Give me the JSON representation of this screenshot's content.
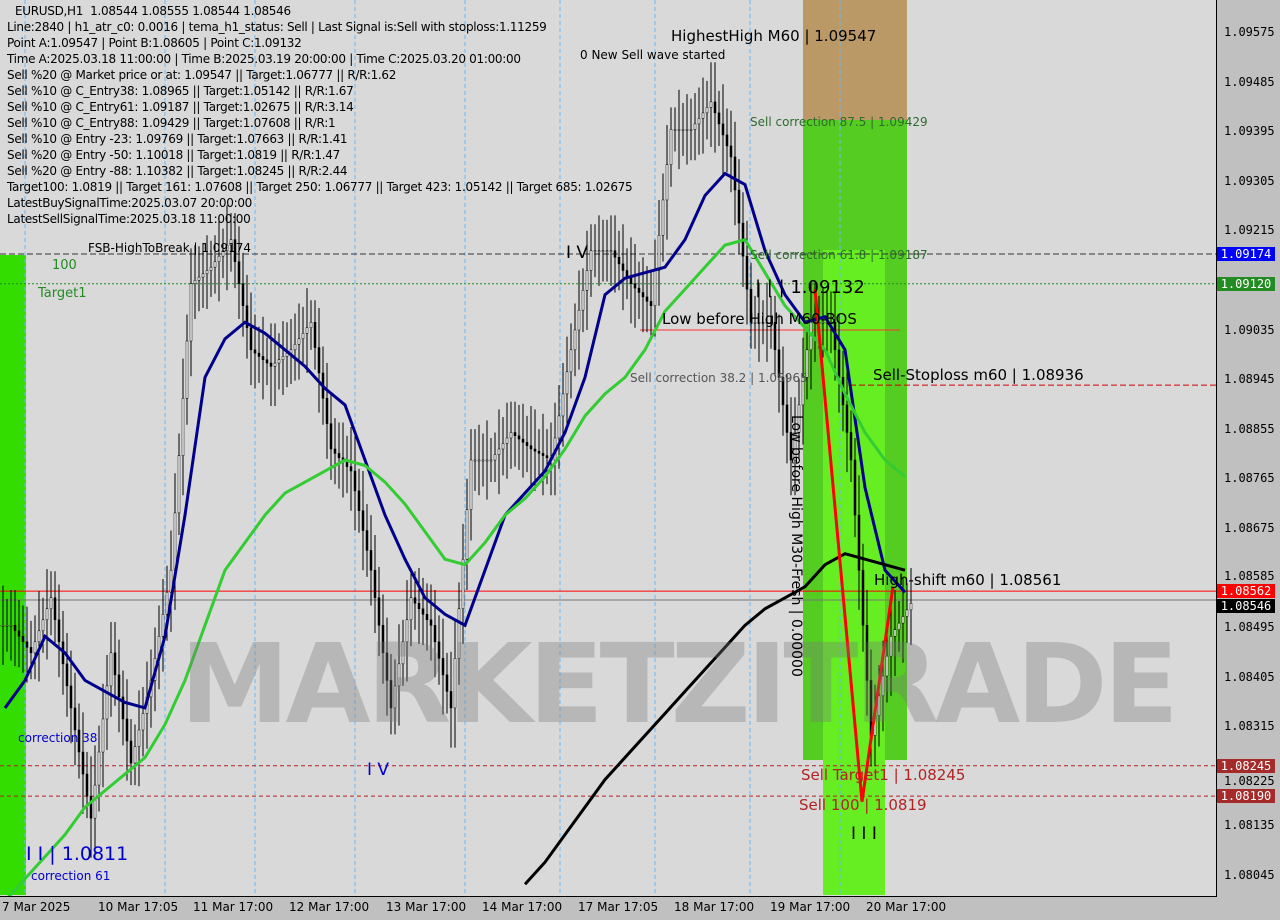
{
  "chart_data": {
    "type": "candlestick",
    "symbol": "EURUSD,H1",
    "ohlc_header": "1.08544 1.08555 1.08544 1.08546",
    "ylim": [
      1.08,
      1.0962
    ],
    "y_ticks": [
      "1.09575",
      "1.09485",
      "1.09395",
      "1.09305",
      "1.09215",
      "1.09035",
      "1.08945",
      "1.08855",
      "1.08765",
      "1.08675",
      "1.08585",
      "1.08495",
      "1.08405",
      "1.08315",
      "1.08225",
      "1.08135",
      "1.08045"
    ],
    "x_ticks": [
      "7 Mar 2025",
      "10 Mar 17:05",
      "11 Mar 17:00",
      "12 Mar 17:00",
      "13 Mar 17:00",
      "14 Mar 17:00",
      "17 Mar 17:05",
      "18 Mar 17:00",
      "19 Mar 17:00",
      "20 Mar 17:00"
    ],
    "close": [
      1.085,
      1.0845,
      1.0855,
      1.0835,
      1.0815,
      1.0845,
      1.0825,
      1.084,
      1.086,
      1.0912,
      1.0915,
      1.092,
      1.09,
      1.0897,
      1.09,
      1.0905,
      1.0882,
      1.0878,
      1.086,
      1.0835,
      1.0855,
      1.085,
      1.0835,
      1.088,
      1.088,
      1.0885,
      1.0882,
      1.088,
      1.09,
      1.0918,
      1.0918,
      1.0912,
      1.0908,
      1.094,
      1.094,
      1.0945,
      1.0935,
      1.0905,
      1.0905,
      1.088,
      1.0905,
      1.0905,
      1.088,
      1.083,
      1.0848,
      1.0854
    ],
    "series": [
      {
        "color": "#00008b",
        "values": [
          1.0835,
          1.084,
          1.0848,
          1.0845,
          1.084,
          1.0838,
          1.0836,
          1.0835,
          1.0848,
          1.087,
          1.0895,
          1.0902,
          1.0905,
          1.0903,
          1.09,
          1.0897,
          1.0893,
          1.089,
          1.088,
          1.087,
          1.0862,
          1.0855,
          1.0852,
          1.085,
          1.086,
          1.087,
          1.0874,
          1.0878,
          1.0885,
          1.0895,
          1.091,
          1.0913,
          1.0914,
          1.0915,
          1.092,
          1.0928,
          1.0932,
          1.093,
          1.0918,
          1.091,
          1.0905,
          1.0906,
          1.09,
          1.0875,
          1.086,
          1.0856
        ]
      },
      {
        "color": "#33cc33",
        "values": [
          1.08,
          1.0804,
          1.0808,
          1.0812,
          1.0817,
          1.082,
          1.0823,
          1.0826,
          1.0832,
          1.084,
          1.085,
          1.086,
          1.0865,
          1.087,
          1.0874,
          1.0876,
          1.0878,
          1.088,
          1.0879,
          1.0876,
          1.0872,
          1.0867,
          1.0862,
          1.0861,
          1.0865,
          1.087,
          1.0873,
          1.0877,
          1.0882,
          1.0888,
          1.0892,
          1.0895,
          1.09,
          1.0907,
          1.0911,
          1.0915,
          1.0919,
          1.092,
          1.0914,
          1.0908,
          1.0904,
          1.09,
          1.0892,
          1.0885,
          1.088,
          1.0877
        ]
      },
      {
        "color": "#000000",
        "values": [
          null,
          null,
          null,
          null,
          null,
          null,
          null,
          null,
          null,
          null,
          null,
          null,
          null,
          null,
          null,
          null,
          null,
          null,
          null,
          null,
          null,
          null,
          null,
          null,
          null,
          null,
          1.0803,
          1.0807,
          1.0812,
          1.0817,
          1.0822,
          1.0826,
          1.083,
          1.0834,
          1.0838,
          1.0842,
          1.0846,
          1.085,
          1.0853,
          1.0855,
          1.0857,
          1.0861,
          1.0863,
          1.0862,
          1.0861,
          1.086
        ]
      }
    ],
    "levels": [
      {
        "value": "1.09174",
        "color": "#0000ff"
      },
      {
        "value": "1.09120",
        "color": "#228b22"
      },
      {
        "value": "1.08562",
        "color": "#ff0000"
      },
      {
        "value": "1.08546",
        "color": "#000000"
      },
      {
        "value": "1.08245",
        "color": "#a52a2a"
      },
      {
        "value": "1.08190",
        "color": "#a52a2a"
      }
    ]
  },
  "info_lines": [
    "EURUSD,H1  1.08544 1.08555 1.08544 1.08546",
    "Line:2840 | h1_atr_c0: 0.0016 | tema_h1_status: Sell | Last Signal is:Sell with stoploss:1.11259",
    "Point A:1.09547 | Point B:1.08605 | Point C:1.09132",
    "Time A:2025.03.18 11:00:00 | Time B:2025.03.19 20:00:00 | Time C:2025.03.20 01:00:00",
    "Sell %20 @ Market price or at: 1.09547 || Target:1.06777 || R/R:1.62",
    "Sell %10 @ C_Entry38: 1.08965 || Target:1.05142 || R/R:1.67",
    "Sell %10 @ C_Entry61: 1.09187 || Target:1.02675 || R/R:3.14",
    "Sell %10 @ C_Entry88: 1.09429 || Target:1.07608 || R/R:1",
    "Sell %10 @ Entry -23: 1.09769 || Target:1.07663 || R/R:1.41",
    "Sell %20 @ Entry -50: 1.10018 || Target:1.0819 || R/R:1.47",
    "Sell %20 @ Entry -88: 1.10382 || Target:1.08245 || R/R:2.44",
    "Target100: 1.0819 || Target 161: 1.07608 || Target 250: 1.06777 || Target 423: 1.05142 || Target 685: 1.02675",
    "LatestBuySignalTime:2025.03.07 20:00:00",
    "LatestSellSignalTime:2025.03.18 11:00:00"
  ],
  "annotations": {
    "highest_high": "HighestHigh   M60 | 1.09547",
    "new_sell_wave": "0 New Sell wave started",
    "sell_corr_875": "Sell correction 87.5 | 1.09429",
    "sell_corr_618": "Sell correction 61.8 | 1.09187",
    "sell_corr_382": "Sell correction 38.2 | 1.08965",
    "fsb": "FSB-HighToBreak | 1.09174",
    "label_100": "100",
    "target1": "Target1",
    "point_c": "| | | 1.09132",
    "low_before_high": "Low before High  M60-BOS",
    "sell_stoploss": "Sell-Stoploss m60 | 1.08936",
    "low_before_high_vertical": "Low before High  M30-Fresh | 0.00000",
    "high_shift": "High-shift m60 | 1.08561",
    "sell_target1": "Sell Target1 | 1.08245",
    "sell_100": "Sell 100 | 1.0819",
    "wave_iii": "I I I",
    "wave_iv": "I V",
    "wave_ii": "I I | 1.0811",
    "correction_38": "correction 38",
    "correction_61": "correction 61",
    "wave_i": "I V",
    "watermark": "MARKETZITRADE"
  }
}
